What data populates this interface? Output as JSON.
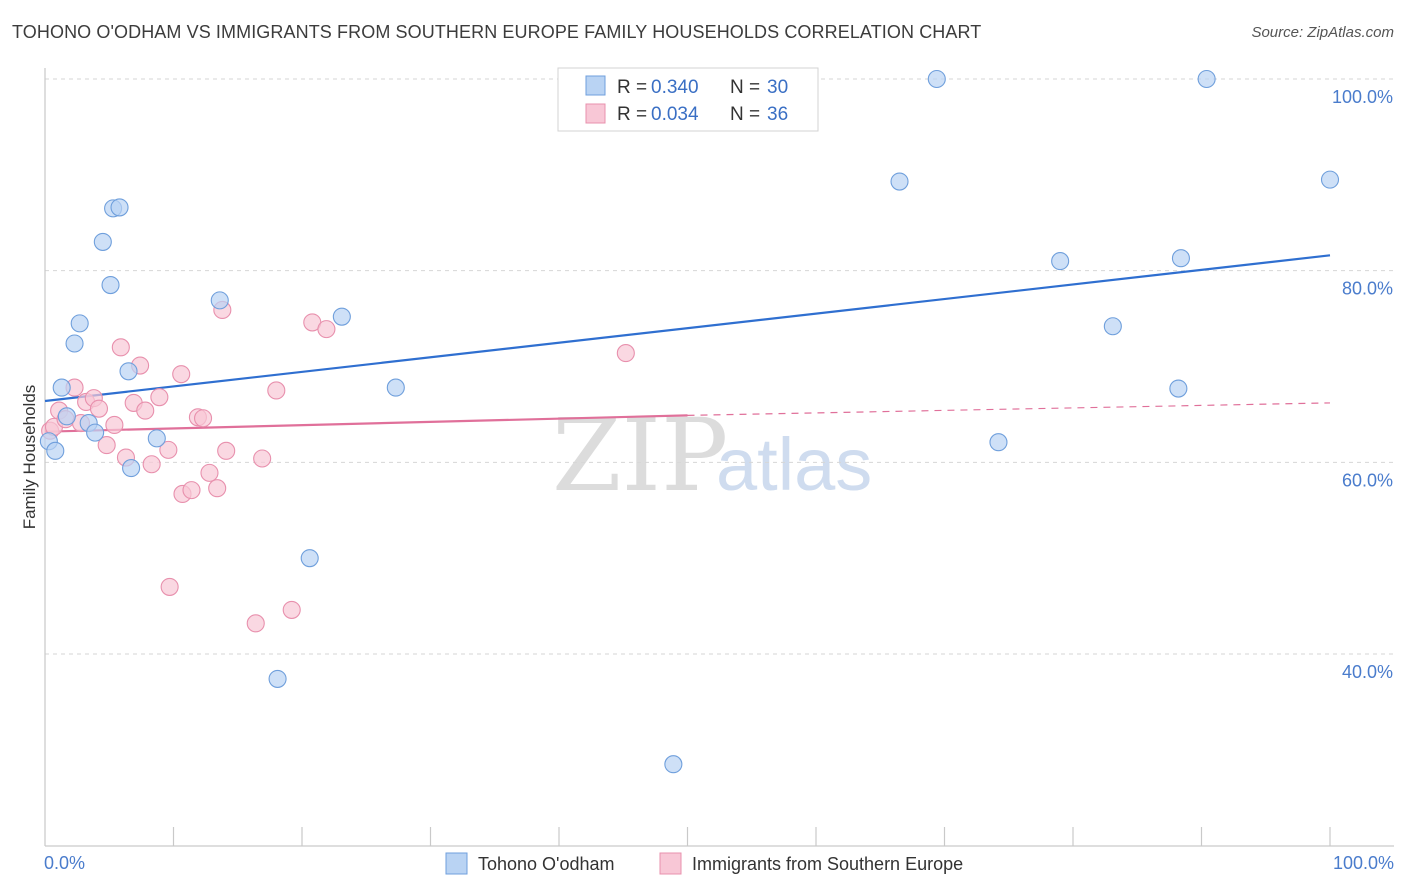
{
  "header": {
    "title": "TOHONO O'ODHAM VS IMMIGRANTS FROM SOUTHERN EUROPE FAMILY HOUSEHOLDS CORRELATION CHART",
    "source": "Source: ZipAtlas.com"
  },
  "legend": {
    "series1": {
      "r_label": "R =",
      "r_value": "0.340",
      "n_label": "N =",
      "n_value": "30"
    },
    "series2": {
      "r_label": "R =",
      "r_value": "0.034",
      "n_label": "N =",
      "n_value": "36"
    }
  },
  "watermark": {
    "zip": "ZIP",
    "atlas": "atlas"
  },
  "colors": {
    "blue_fill": "#b9d3f3",
    "blue_stroke": "#6f9fdc",
    "blue_line": "#2f6fd0",
    "pink_fill": "#f8c7d6",
    "pink_stroke": "#e890ad",
    "pink_line": "#e0709a",
    "grid": "#d6d6d6",
    "tick_text": "#4a7ccc"
  },
  "chart_data": {
    "type": "scatter",
    "title": "TOHONO O'ODHAM VS IMMIGRANTS FROM SOUTHERN EUROPE FAMILY HOUSEHOLDS CORRELATION CHART",
    "xlabel": "",
    "ylabel": "Family Households",
    "xlim": [
      0,
      100
    ],
    "ylim": [
      20,
      101
    ],
    "x_tick_labels": [
      "0.0%",
      "100.0%"
    ],
    "y_ticks": [
      40,
      60,
      80,
      100
    ],
    "y_tick_labels": [
      "40.0%",
      "60.0%",
      "80.0%",
      "100.0%"
    ],
    "grid": true,
    "legend_position": "top-center",
    "series": [
      {
        "name": "Tohono O'odham",
        "color": "blue",
        "r": 0.34,
        "n": 30,
        "trend": {
          "x": [
            0,
            100
          ],
          "y": [
            66.4,
            81.6
          ]
        },
        "points": [
          {
            "x": 0.3,
            "y": 62.2
          },
          {
            "x": 0.8,
            "y": 61.2
          },
          {
            "x": 1.3,
            "y": 67.8
          },
          {
            "x": 1.7,
            "y": 64.8
          },
          {
            "x": 2.3,
            "y": 72.4
          },
          {
            "x": 2.7,
            "y": 74.5
          },
          {
            "x": 3.4,
            "y": 64.1
          },
          {
            "x": 3.9,
            "y": 63.1
          },
          {
            "x": 4.5,
            "y": 83.0
          },
          {
            "x": 5.1,
            "y": 78.5
          },
          {
            "x": 5.3,
            "y": 86.5
          },
          {
            "x": 5.8,
            "y": 86.6
          },
          {
            "x": 6.5,
            "y": 69.5
          },
          {
            "x": 6.7,
            "y": 59.4
          },
          {
            "x": 8.7,
            "y": 62.5
          },
          {
            "x": 13.6,
            "y": 76.9
          },
          {
            "x": 18.1,
            "y": 37.4
          },
          {
            "x": 20.6,
            "y": 50.0
          },
          {
            "x": 23.1,
            "y": 75.2
          },
          {
            "x": 27.3,
            "y": 67.8
          },
          {
            "x": 48.9,
            "y": 28.5
          },
          {
            "x": 66.5,
            "y": 89.3
          },
          {
            "x": 69.4,
            "y": 100.0
          },
          {
            "x": 74.2,
            "y": 62.1
          },
          {
            "x": 79.0,
            "y": 81.0
          },
          {
            "x": 83.1,
            "y": 74.2
          },
          {
            "x": 88.2,
            "y": 67.7
          },
          {
            "x": 88.4,
            "y": 81.3
          },
          {
            "x": 90.4,
            "y": 100.0
          },
          {
            "x": 100.0,
            "y": 89.5
          }
        ]
      },
      {
        "name": "Immigrants from Southern Europe",
        "color": "pink",
        "r": 0.034,
        "n": 36,
        "trend": {
          "x": [
            0,
            50,
            100
          ],
          "y": [
            63.2,
            64.9,
            66.2
          ],
          "solid_until": 50
        },
        "points": [
          {
            "x": 0.4,
            "y": 63.3
          },
          {
            "x": 0.7,
            "y": 63.7
          },
          {
            "x": 1.1,
            "y": 65.4
          },
          {
            "x": 1.6,
            "y": 64.5
          },
          {
            "x": 2.3,
            "y": 67.8
          },
          {
            "x": 2.8,
            "y": 64.1
          },
          {
            "x": 3.2,
            "y": 66.3
          },
          {
            "x": 3.8,
            "y": 66.7
          },
          {
            "x": 4.2,
            "y": 65.6
          },
          {
            "x": 4.8,
            "y": 61.8
          },
          {
            "x": 5.4,
            "y": 63.9
          },
          {
            "x": 5.9,
            "y": 72.0
          },
          {
            "x": 6.3,
            "y": 60.5
          },
          {
            "x": 6.9,
            "y": 66.2
          },
          {
            "x": 7.4,
            "y": 70.1
          },
          {
            "x": 7.8,
            "y": 65.4
          },
          {
            "x": 8.3,
            "y": 59.8
          },
          {
            "x": 8.9,
            "y": 66.8
          },
          {
            "x": 9.6,
            "y": 61.3
          },
          {
            "x": 9.7,
            "y": 47.0
          },
          {
            "x": 10.6,
            "y": 69.2
          },
          {
            "x": 10.7,
            "y": 56.7
          },
          {
            "x": 11.4,
            "y": 57.1
          },
          {
            "x": 11.9,
            "y": 64.7
          },
          {
            "x": 12.3,
            "y": 64.6
          },
          {
            "x": 12.8,
            "y": 58.9
          },
          {
            "x": 13.4,
            "y": 57.3
          },
          {
            "x": 13.8,
            "y": 75.9
          },
          {
            "x": 14.1,
            "y": 61.2
          },
          {
            "x": 16.4,
            "y": 43.2
          },
          {
            "x": 16.9,
            "y": 60.4
          },
          {
            "x": 18.0,
            "y": 67.5
          },
          {
            "x": 19.2,
            "y": 44.6
          },
          {
            "x": 20.8,
            "y": 74.6
          },
          {
            "x": 21.9,
            "y": 73.9
          },
          {
            "x": 45.2,
            "y": 71.4
          }
        ]
      }
    ]
  }
}
